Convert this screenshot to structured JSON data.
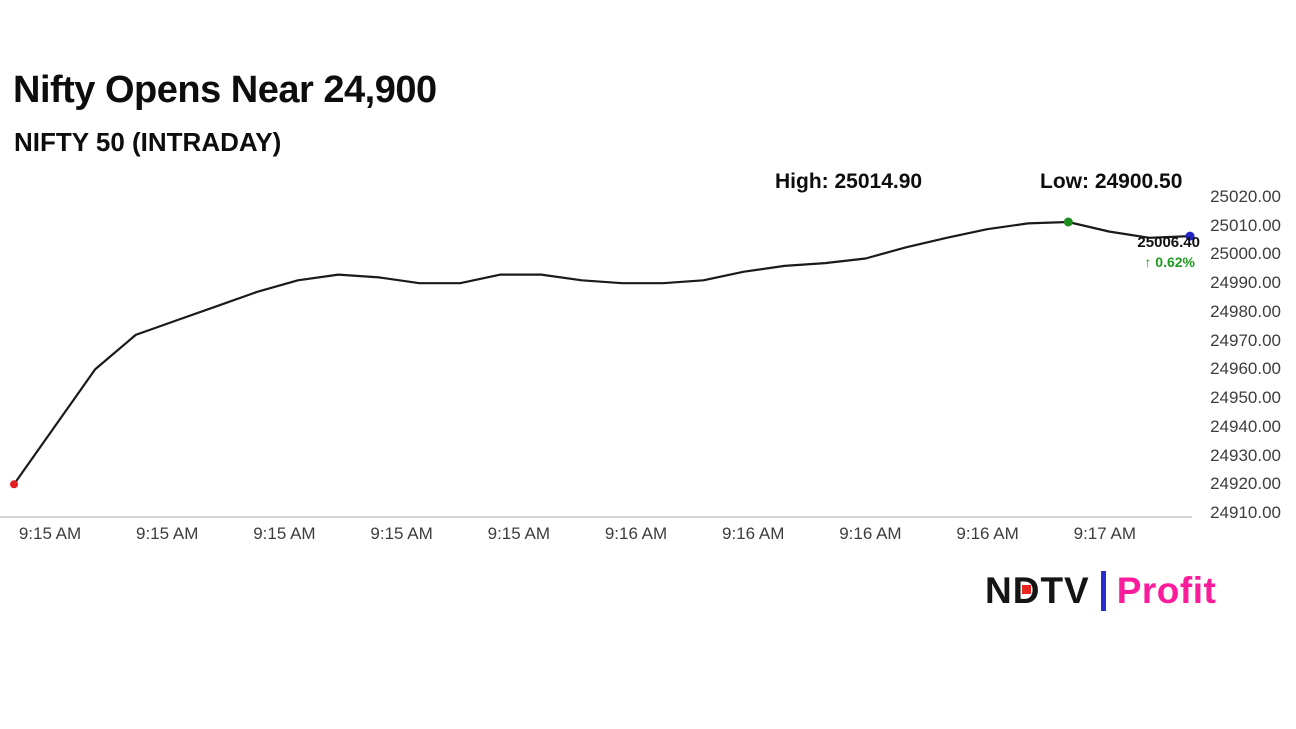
{
  "header": {
    "title": "Nifty Opens Near 24,900",
    "subtitle": "NIFTY 50 (INTRADAY)"
  },
  "stats": {
    "high_label": "High: 25014.90",
    "low_label": "Low: 24900.50"
  },
  "annotation": {
    "last_price": "25006.40",
    "change_pct": "↑ 0.62%"
  },
  "footer": {
    "brand_left": "NDTV",
    "brand_right": "Profit"
  },
  "chart_data": {
    "type": "line",
    "title": "Nifty Opens Near 24,900",
    "subtitle": "NIFTY 50 (INTRADAY)",
    "high": 25014.9,
    "low": 24900.5,
    "last": 25006.4,
    "change_pct": "0.62%",
    "ylim": [
      24910,
      25020
    ],
    "line_color": "#1a1a1a",
    "baseline_color": "#c8c8c8",
    "legend": "none",
    "grid": "off",
    "y_tick_labels": [
      "25020.00",
      "25010.00",
      "25000.00",
      "24990.00",
      "24980.00",
      "24970.00",
      "24960.00",
      "24950.00",
      "24940.00",
      "24930.00",
      "24920.00",
      "24910.00"
    ],
    "x_tick_labels": [
      "9:15 AM",
      "9:15 AM",
      "9:15 AM",
      "9:15 AM",
      "9:15 AM",
      "9:16 AM",
      "9:16 AM",
      "9:16 AM",
      "9:16 AM",
      "9:17 AM"
    ],
    "values": [
      24920,
      24940,
      24960,
      24972,
      24977,
      24982,
      24987,
      24991,
      24993,
      24992,
      24990,
      24990,
      24993,
      24993,
      24991,
      24990,
      24990,
      24991,
      24994,
      24996,
      24997,
      24998.6,
      25002.5,
      25005.8,
      25008.8,
      25010.8,
      25011.3,
      25008,
      25005.8,
      25006.4
    ],
    "markers": [
      {
        "name": "open-marker",
        "index": 0,
        "color": "#e02020",
        "r": 4
      },
      {
        "name": "high-marker",
        "index": 26,
        "color": "#1e8e1e",
        "r": 4.5
      },
      {
        "name": "last-marker",
        "index": 29,
        "color": "#2323c8",
        "r": 4.5
      }
    ]
  }
}
